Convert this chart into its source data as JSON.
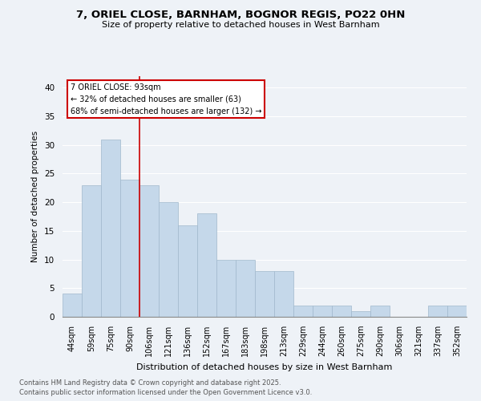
{
  "title1": "7, ORIEL CLOSE, BARNHAM, BOGNOR REGIS, PO22 0HN",
  "title2": "Size of property relative to detached houses in West Barnham",
  "xlabel": "Distribution of detached houses by size in West Barnham",
  "ylabel": "Number of detached properties",
  "categories": [
    "44sqm",
    "59sqm",
    "75sqm",
    "90sqm",
    "106sqm",
    "121sqm",
    "136sqm",
    "152sqm",
    "167sqm",
    "183sqm",
    "198sqm",
    "213sqm",
    "229sqm",
    "244sqm",
    "260sqm",
    "275sqm",
    "290sqm",
    "306sqm",
    "321sqm",
    "337sqm",
    "352sqm"
  ],
  "values": [
    4,
    23,
    31,
    24,
    23,
    20,
    16,
    18,
    10,
    10,
    8,
    8,
    2,
    2,
    2,
    1,
    2,
    0,
    0,
    2,
    2
  ],
  "bar_color": "#c5d8ea",
  "bar_edge_color": "#a0b8cc",
  "marker_index": 3,
  "marker_label": "7 ORIEL CLOSE: 93sqm",
  "annotation_line1": "← 32% of detached houses are smaller (63)",
  "annotation_line2": "68% of semi-detached houses are larger (132) →",
  "marker_color": "#cc0000",
  "footnote1": "Contains HM Land Registry data © Crown copyright and database right 2025.",
  "footnote2": "Contains public sector information licensed under the Open Government Licence v3.0.",
  "ylim": [
    0,
    42
  ],
  "yticks": [
    0,
    5,
    10,
    15,
    20,
    25,
    30,
    35,
    40
  ],
  "bg_color": "#eef2f7",
  "grid_color": "#ffffff"
}
